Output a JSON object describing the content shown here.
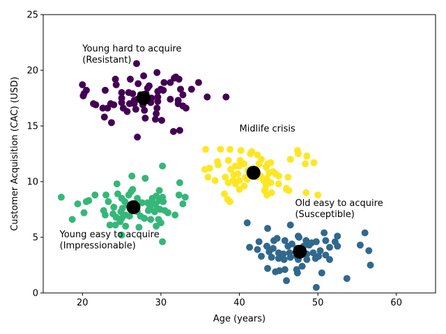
{
  "chart_data": {
    "type": "scatter",
    "title": "",
    "xlabel": "Age (years)",
    "ylabel": "Customer Acquisition (CAC) (USD)",
    "xlim": [
      15,
      65
    ],
    "ylim": [
      0,
      25
    ],
    "xticks": [
      20,
      30,
      40,
      50,
      60
    ],
    "yticks": [
      0,
      5,
      10,
      15,
      20,
      25
    ],
    "grid": false,
    "legend": "none",
    "colors": {
      "cluster_purple": "#440154",
      "cluster_green": "#35b779",
      "cluster_yellow": "#fde725",
      "cluster_blue": "#31688e",
      "centroid": "#000000"
    },
    "annotations": [
      {
        "lines": [
          "Young hard to acquire",
          "(Resistant)"
        ],
        "x": 20,
        "y": 21.7
      },
      {
        "lines": [
          "Midlife crisis"
        ],
        "x": 40,
        "y": 14.5
      },
      {
        "lines": [
          "Old easy to acquire",
          "(Susceptible)"
        ],
        "x": 47.1,
        "y": 7.8
      },
      {
        "lines": [
          "Young easy to acquire",
          "(Impressionable)"
        ],
        "x": 17.1,
        "y": 5.0
      }
    ],
    "series": [
      {
        "color_key": "cluster_purple",
        "centroid": [
          27.8,
          17.5
        ],
        "points": [
          [
            26.9,
            20.6
          ],
          [
            29.5,
            19.8
          ],
          [
            24.2,
            19.2
          ],
          [
            26.1,
            19.2
          ],
          [
            27.8,
            19.5
          ],
          [
            31.7,
            19.3
          ],
          [
            32.3,
            19.2
          ],
          [
            31.9,
            19.4
          ],
          [
            34.8,
            18.9
          ],
          [
            20.0,
            18.7
          ],
          [
            24.3,
            18.7
          ],
          [
            27.1,
            18.8
          ],
          [
            28.5,
            18.6
          ],
          [
            28.3,
            18.4
          ],
          [
            30.4,
            18.9
          ],
          [
            31.2,
            18.9
          ],
          [
            22.9,
            18.2
          ],
          [
            20.5,
            18.2
          ],
          [
            20.2,
            17.9
          ],
          [
            20.1,
            17.7
          ],
          [
            25.0,
            18.0
          ],
          [
            25.9,
            18.0
          ],
          [
            26.4,
            17.9
          ],
          [
            27.4,
            17.8
          ],
          [
            28.1,
            17.9
          ],
          [
            29.6,
            18.1
          ],
          [
            30.0,
            18.3
          ],
          [
            30.3,
            18.2
          ],
          [
            32.5,
            18.3
          ],
          [
            33.9,
            18.3
          ],
          [
            32.8,
            17.8
          ],
          [
            35.9,
            17.6
          ],
          [
            38.3,
            17.6
          ],
          [
            25.0,
            17.5
          ],
          [
            26.6,
            17.3
          ],
          [
            27.0,
            17.4
          ],
          [
            28.8,
            17.5
          ],
          [
            29.6,
            17.6
          ],
          [
            31.2,
            17.4
          ],
          [
            32.2,
            17.3
          ],
          [
            21.4,
            17.0
          ],
          [
            21.7,
            16.9
          ],
          [
            23.6,
            17.0
          ],
          [
            24.0,
            16.9
          ],
          [
            25.0,
            17.1
          ],
          [
            26.0,
            17.0
          ],
          [
            26.6,
            17.0
          ],
          [
            27.7,
            16.9
          ],
          [
            28.7,
            17.1
          ],
          [
            29.6,
            17.2
          ],
          [
            32.2,
            17.0
          ],
          [
            32.8,
            16.8
          ],
          [
            33.2,
            16.6
          ],
          [
            23.2,
            16.6
          ],
          [
            22.6,
            16.6
          ],
          [
            25.2,
            16.6
          ],
          [
            25.7,
            16.3
          ],
          [
            26.8,
            16.5
          ],
          [
            27.9,
            16.4
          ],
          [
            29.4,
            16.1
          ],
          [
            29.5,
            16.6
          ],
          [
            22.8,
            15.8
          ],
          [
            28.0,
            15.7
          ],
          [
            29.3,
            15.6
          ],
          [
            30.1,
            15.5
          ],
          [
            23.7,
            15.3
          ],
          [
            31.6,
            14.5
          ],
          [
            32.4,
            14.6
          ],
          [
            27.0,
            14.0
          ]
        ]
      },
      {
        "color_key": "cluster_yellow",
        "centroid": [
          41.8,
          10.8
        ],
        "points": [
          [
            35.7,
            12.9
          ],
          [
            37.6,
            12.9
          ],
          [
            38.8,
            12.9
          ],
          [
            40.2,
            12.8
          ],
          [
            41.4,
            12.5
          ],
          [
            41.6,
            12.7
          ],
          [
            42.3,
            12.4
          ],
          [
            42.8,
            12.0
          ],
          [
            43.6,
            11.6
          ],
          [
            44.0,
            11.7
          ],
          [
            46.5,
            12.0
          ],
          [
            47.4,
            12.8
          ],
          [
            47.5,
            12.5
          ],
          [
            48.6,
            12.3
          ],
          [
            48.4,
            11.6
          ],
          [
            49.5,
            11.7
          ],
          [
            36.2,
            11.2
          ],
          [
            37.2,
            11.8
          ],
          [
            37.3,
            11.5
          ],
          [
            38.6,
            11.9
          ],
          [
            39.5,
            11.4
          ],
          [
            40.0,
            11.4
          ],
          [
            40.1,
            11.9
          ],
          [
            40.6,
            11.6
          ],
          [
            41.1,
            11.0
          ],
          [
            41.4,
            11.1
          ],
          [
            42.5,
            11.6
          ],
          [
            43.4,
            11.3
          ],
          [
            43.8,
            10.8
          ],
          [
            44.3,
            10.9
          ],
          [
            44.6,
            10.7
          ],
          [
            45.0,
            10.5
          ],
          [
            46.2,
            10.4
          ],
          [
            35.6,
            11.1
          ],
          [
            38.9,
            11.1
          ],
          [
            39.3,
            10.6
          ],
          [
            39.8,
            10.7
          ],
          [
            41.0,
            10.2
          ],
          [
            42.7,
            10.5
          ],
          [
            43.5,
            10.3
          ],
          [
            36.0,
            10.4
          ],
          [
            36.9,
            10.1
          ],
          [
            38.2,
            10.4
          ],
          [
            39.2,
            10.1
          ],
          [
            40.0,
            10.1
          ],
          [
            40.8,
            10.4
          ],
          [
            41.3,
            10.6
          ],
          [
            42.2,
            10.4
          ],
          [
            43.1,
            10.1
          ],
          [
            43.4,
            9.7
          ],
          [
            44.0,
            9.9
          ],
          [
            45.0,
            9.8
          ],
          [
            46.0,
            9.4
          ],
          [
            38.6,
            9.9
          ],
          [
            39.5,
            9.8
          ],
          [
            40.6,
            9.6
          ],
          [
            40.0,
            9.3
          ],
          [
            43.2,
            9.2
          ],
          [
            44.1,
            9.0
          ],
          [
            46.0,
            9.3
          ],
          [
            43.3,
            9.3
          ],
          [
            38.1,
            8.9
          ],
          [
            43.5,
            8.8
          ],
          [
            48.5,
            9.0
          ],
          [
            50.0,
            8.8
          ],
          [
            38.5,
            8.4
          ],
          [
            38.8,
            8.2
          ],
          [
            46.3,
            9.2
          ]
        ]
      },
      {
        "color_key": "cluster_green",
        "centroid": [
          26.5,
          7.7
        ],
        "points": [
          [
            26.3,
            10.5
          ],
          [
            28.0,
            10.3
          ],
          [
            30.2,
            11.4
          ],
          [
            24.4,
            9.8
          ],
          [
            32.4,
            9.9
          ],
          [
            26.2,
            9.1
          ],
          [
            26.4,
            9.3
          ],
          [
            29.8,
            9.2
          ],
          [
            21.6,
            8.8
          ],
          [
            23.0,
            8.8
          ],
          [
            24.5,
            8.9
          ],
          [
            25.9,
            8.8
          ],
          [
            27.0,
            8.5
          ],
          [
            28.9,
            8.5
          ],
          [
            29.4,
            8.7
          ],
          [
            30.2,
            8.6
          ],
          [
            30.1,
            8.4
          ],
          [
            32.3,
            8.8
          ],
          [
            33.1,
            8.6
          ],
          [
            17.3,
            8.6
          ],
          [
            20.5,
            8.2
          ],
          [
            20.8,
            8.3
          ],
          [
            19.4,
            8.0
          ],
          [
            23.3,
            8.2
          ],
          [
            25.0,
            8.5
          ],
          [
            25.4,
            8.2
          ],
          [
            26.5,
            8.0
          ],
          [
            27.6,
            8.1
          ],
          [
            28.3,
            8.1
          ],
          [
            28.8,
            8.0
          ],
          [
            29.3,
            8.0
          ],
          [
            29.8,
            8.3
          ],
          [
            30.3,
            8.2
          ],
          [
            32.8,
            8.0
          ],
          [
            24.0,
            7.7
          ],
          [
            25.1,
            7.6
          ],
          [
            25.8,
            7.9
          ],
          [
            28.6,
            7.7
          ],
          [
            29.5,
            7.6
          ],
          [
            29.9,
            7.5
          ],
          [
            30.5,
            7.4
          ],
          [
            20.2,
            7.2
          ],
          [
            22.7,
            7.4
          ],
          [
            23.9,
            7.1
          ],
          [
            24.9,
            7.3
          ],
          [
            25.5,
            7.0
          ],
          [
            27.0,
            7.3
          ],
          [
            28.4,
            7.4
          ],
          [
            29.2,
            7.3
          ],
          [
            30.9,
            7.2
          ],
          [
            22.9,
            7.0
          ],
          [
            24.3,
            6.8
          ],
          [
            25.0,
            6.7
          ],
          [
            26.0,
            6.9
          ],
          [
            27.4,
            6.9
          ],
          [
            27.9,
            6.7
          ],
          [
            28.7,
            6.6
          ],
          [
            29.7,
            6.6
          ],
          [
            31.8,
            7.0
          ],
          [
            18.7,
            6.6
          ],
          [
            23.5,
            6.1
          ],
          [
            24.2,
            6.1
          ],
          [
            24.8,
            6.4
          ],
          [
            25.5,
            6.0
          ],
          [
            27.2,
            5.9
          ],
          [
            29.4,
            6.0
          ],
          [
            30.0,
            6.3
          ],
          [
            25.0,
            5.2
          ],
          [
            30.2,
            4.6
          ]
        ]
      },
      {
        "color_key": "cluster_blue",
        "centroid": [
          47.7,
          3.7
        ],
        "points": [
          [
            41.0,
            6.3
          ],
          [
            46.5,
            6.1
          ],
          [
            43.6,
            5.8
          ],
          [
            47.5,
            5.1
          ],
          [
            47.6,
            5.0
          ],
          [
            50.8,
            5.4
          ],
          [
            52.5,
            5.1
          ],
          [
            56.0,
            5.4
          ],
          [
            44.8,
            4.9
          ],
          [
            44.4,
            4.7
          ],
          [
            45.8,
            4.7
          ],
          [
            48.5,
            4.7
          ],
          [
            49.2,
            4.5
          ],
          [
            49.8,
            4.6
          ],
          [
            51.0,
            4.7
          ],
          [
            52.2,
            4.6
          ],
          [
            42.5,
            4.6
          ],
          [
            41.3,
            4.1
          ],
          [
            43.5,
            4.2
          ],
          [
            44.3,
            4.0
          ],
          [
            46.2,
            4.2
          ],
          [
            46.7,
            4.4
          ],
          [
            47.3,
            4.0
          ],
          [
            48.2,
            4.2
          ],
          [
            48.9,
            4.3
          ],
          [
            50.3,
            3.8
          ],
          [
            51.5,
            4.1
          ],
          [
            52.5,
            4.2
          ],
          [
            55.4,
            4.3
          ],
          [
            42.3,
            3.9
          ],
          [
            43.8,
            3.7
          ],
          [
            45.0,
            3.6
          ],
          [
            45.6,
            3.5
          ],
          [
            46.4,
            3.6
          ],
          [
            47.3,
            3.3
          ],
          [
            48.6,
            3.5
          ],
          [
            49.4,
            3.6
          ],
          [
            50.1,
            3.3
          ],
          [
            51.0,
            3.4
          ],
          [
            51.5,
            3.0
          ],
          [
            56.5,
            3.8
          ],
          [
            42.8,
            3.3
          ],
          [
            44.1,
            3.2
          ],
          [
            45.0,
            3.1
          ],
          [
            45.7,
            3.0
          ],
          [
            46.5,
            3.2
          ],
          [
            47.5,
            3.0
          ],
          [
            48.6,
            3.0
          ],
          [
            49.7,
            3.1
          ],
          [
            56.7,
            2.5
          ],
          [
            43.6,
            2.2
          ],
          [
            45.1,
            2.0
          ],
          [
            45.8,
            2.1
          ],
          [
            47.3,
            2.1
          ],
          [
            48.0,
            2.4
          ],
          [
            50.5,
            1.8
          ],
          [
            47.4,
            1.8
          ],
          [
            44.6,
            1.9
          ],
          [
            46.0,
            1.1
          ],
          [
            53.7,
            1.3
          ],
          [
            49.8,
            0.5
          ]
        ]
      }
    ]
  }
}
